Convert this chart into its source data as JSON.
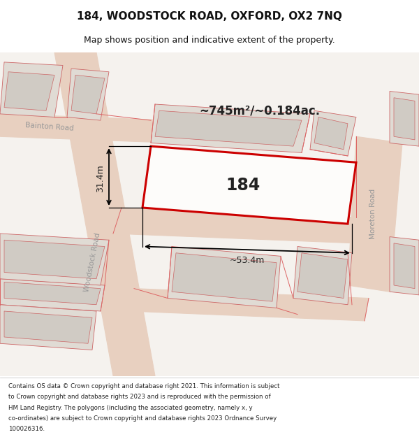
{
  "title": "184, WOODSTOCK ROAD, OXFORD, OX2 7NQ",
  "subtitle": "Map shows position and indicative extent of the property.",
  "footer_lines": [
    "Contains OS data © Crown copyright and database right 2021. This information is subject",
    "to Crown copyright and database rights 2023 and is reproduced with the permission of",
    "HM Land Registry. The polygons (including the associated geometry, namely x, y",
    "co-ordinates) are subject to Crown copyright and database rights 2023 Ordnance Survey",
    "100026316."
  ],
  "area_label": "~745m²/~0.184ac.",
  "plot_number": "184",
  "dim_width": "~53.4m",
  "dim_height": "31.4m",
  "map_background": "#f5f2ee",
  "plot_outline_color": "#cc0000",
  "road_color": "#e8d0c0",
  "building_fill": "#e0dbd4",
  "building_outline": "#cc6666",
  "building_inner": "#d0cbc4",
  "line_color": "#dd6666"
}
